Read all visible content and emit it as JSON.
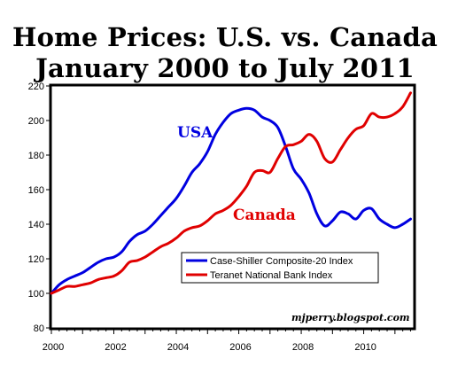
{
  "chart_data": {
    "type": "line",
    "title_line1": "Home Prices: U.S. vs. Canada",
    "title_line2": "January 2000 to July 2011",
    "xlabel": "",
    "ylabel": "",
    "xlim": [
      2000,
      2011.6
    ],
    "ylim": [
      80,
      220
    ],
    "y_ticks": [
      80,
      100,
      120,
      140,
      160,
      180,
      200,
      220
    ],
    "x_ticks": [
      2000,
      2002,
      2004,
      2006,
      2008,
      2010
    ],
    "grid": false,
    "legend": {
      "placement": "lower-right",
      "entries": [
        "Case-Shiller Composite-20 Index",
        "Teranet National Bank Index"
      ]
    },
    "annotations": {
      "usa": "USA",
      "canada": "Canada",
      "credit": "mjperry.blogspot.com"
    },
    "series": [
      {
        "name": "Case-Shiller Composite-20 Index",
        "color": "#0000e0",
        "points": [
          [
            2000.0,
            100
          ],
          [
            2000.25,
            105
          ],
          [
            2000.5,
            108
          ],
          [
            2000.75,
            110
          ],
          [
            2001.0,
            112
          ],
          [
            2001.25,
            115
          ],
          [
            2001.5,
            118
          ],
          [
            2001.75,
            120
          ],
          [
            2002.0,
            121
          ],
          [
            2002.25,
            124
          ],
          [
            2002.5,
            130
          ],
          [
            2002.75,
            134
          ],
          [
            2003.0,
            136
          ],
          [
            2003.25,
            140
          ],
          [
            2003.5,
            145
          ],
          [
            2003.75,
            150
          ],
          [
            2004.0,
            155
          ],
          [
            2004.25,
            162
          ],
          [
            2004.5,
            170
          ],
          [
            2004.75,
            175
          ],
          [
            2005.0,
            182
          ],
          [
            2005.25,
            192
          ],
          [
            2005.5,
            199
          ],
          [
            2005.75,
            204
          ],
          [
            2006.0,
            206
          ],
          [
            2006.25,
            207
          ],
          [
            2006.5,
            206
          ],
          [
            2006.75,
            202
          ],
          [
            2007.0,
            200
          ],
          [
            2007.25,
            196
          ],
          [
            2007.5,
            185
          ],
          [
            2007.75,
            172
          ],
          [
            2008.0,
            166
          ],
          [
            2008.25,
            158
          ],
          [
            2008.5,
            146
          ],
          [
            2008.75,
            139
          ],
          [
            2009.0,
            142
          ],
          [
            2009.25,
            147
          ],
          [
            2009.5,
            146
          ],
          [
            2009.75,
            143
          ],
          [
            2010.0,
            148
          ],
          [
            2010.25,
            149
          ],
          [
            2010.5,
            143
          ],
          [
            2010.75,
            140
          ],
          [
            2011.0,
            138
          ],
          [
            2011.25,
            140
          ],
          [
            2011.5,
            143
          ]
        ]
      },
      {
        "name": "Teranet National Bank Index",
        "color": "#e00000",
        "points": [
          [
            2000.0,
            100
          ],
          [
            2000.25,
            102
          ],
          [
            2000.5,
            104
          ],
          [
            2000.75,
            104
          ],
          [
            2001.0,
            105
          ],
          [
            2001.25,
            106
          ],
          [
            2001.5,
            108
          ],
          [
            2001.75,
            109
          ],
          [
            2002.0,
            110
          ],
          [
            2002.25,
            113
          ],
          [
            2002.5,
            118
          ],
          [
            2002.75,
            119
          ],
          [
            2003.0,
            121
          ],
          [
            2003.25,
            124
          ],
          [
            2003.5,
            127
          ],
          [
            2003.75,
            129
          ],
          [
            2004.0,
            132
          ],
          [
            2004.25,
            136
          ],
          [
            2004.5,
            138
          ],
          [
            2004.75,
            139
          ],
          [
            2005.0,
            142
          ],
          [
            2005.25,
            146
          ],
          [
            2005.5,
            148
          ],
          [
            2005.75,
            151
          ],
          [
            2006.0,
            156
          ],
          [
            2006.25,
            162
          ],
          [
            2006.5,
            170
          ],
          [
            2006.75,
            171
          ],
          [
            2007.0,
            170
          ],
          [
            2007.25,
            178
          ],
          [
            2007.5,
            185
          ],
          [
            2007.75,
            186
          ],
          [
            2008.0,
            188
          ],
          [
            2008.25,
            192
          ],
          [
            2008.5,
            188
          ],
          [
            2008.75,
            178
          ],
          [
            2009.0,
            176
          ],
          [
            2009.25,
            183
          ],
          [
            2009.5,
            190
          ],
          [
            2009.75,
            195
          ],
          [
            2010.0,
            197
          ],
          [
            2010.25,
            204
          ],
          [
            2010.5,
            202
          ],
          [
            2010.75,
            202
          ],
          [
            2011.0,
            204
          ],
          [
            2011.25,
            208
          ],
          [
            2011.5,
            216
          ]
        ]
      }
    ]
  }
}
